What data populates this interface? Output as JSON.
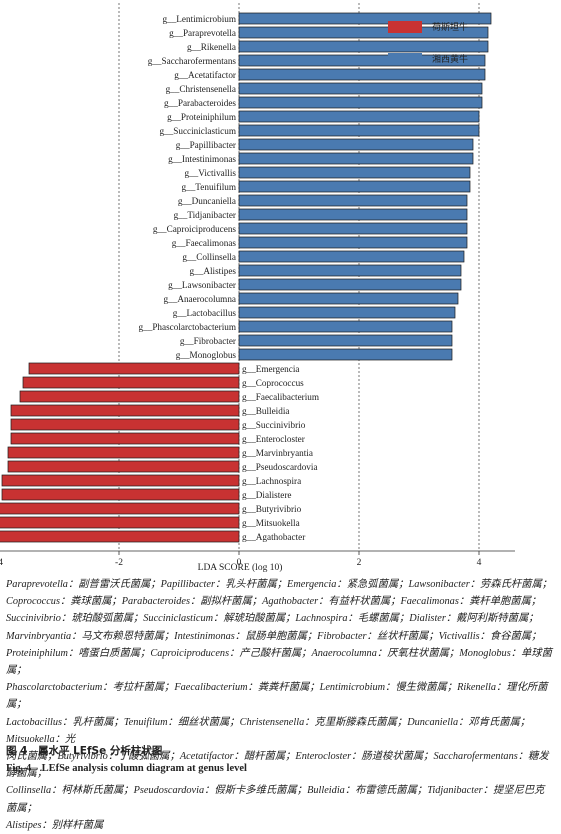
{
  "chart_data": {
    "type": "bar",
    "orientation": "horizontal",
    "xlabel": "LDA SCORE (log 10)",
    "xlim": [
      -5,
      5
    ],
    "xticks": [
      -4,
      -2,
      0,
      2,
      4
    ],
    "grid": true,
    "legend_position": "top-right",
    "series": [
      {
        "name": "荷斯坦牛",
        "color": "#c83232"
      },
      {
        "name": "湘西黄牛",
        "color": "#4a7ab0"
      }
    ],
    "bars": [
      {
        "label": "g__Lentimicrobium",
        "value": 4.2,
        "group": 1
      },
      {
        "label": "g__Paraprevotella",
        "value": 4.15,
        "group": 1
      },
      {
        "label": "g__Rikenella",
        "value": 4.15,
        "group": 1
      },
      {
        "label": "g__Saccharofermentans",
        "value": 4.1,
        "group": 1
      },
      {
        "label": "g__Acetatifactor",
        "value": 4.1,
        "group": 1
      },
      {
        "label": "g__Christensenella",
        "value": 4.05,
        "group": 1
      },
      {
        "label": "g__Parabacteroides",
        "value": 4.05,
        "group": 1
      },
      {
        "label": "g__Proteiniphilum",
        "value": 4.0,
        "group": 1
      },
      {
        "label": "g__Succiniclasticum",
        "value": 4.0,
        "group": 1
      },
      {
        "label": "g__Papillibacter",
        "value": 3.9,
        "group": 1
      },
      {
        "label": "g__Intestinimonas",
        "value": 3.9,
        "group": 1
      },
      {
        "label": "g__Victivallis",
        "value": 3.85,
        "group": 1
      },
      {
        "label": "g__Tenuifilum",
        "value": 3.85,
        "group": 1
      },
      {
        "label": "g__Duncaniella",
        "value": 3.8,
        "group": 1
      },
      {
        "label": "g__Tidjanibacter",
        "value": 3.8,
        "group": 1
      },
      {
        "label": "g__Caproiciproducens",
        "value": 3.8,
        "group": 1
      },
      {
        "label": "g__Faecalimonas",
        "value": 3.8,
        "group": 1
      },
      {
        "label": "g__Collinsella",
        "value": 3.75,
        "group": 1
      },
      {
        "label": "g__Alistipes",
        "value": 3.7,
        "group": 1
      },
      {
        "label": "g__Lawsonibacter",
        "value": 3.7,
        "group": 1
      },
      {
        "label": "g__Anaerocolumna",
        "value": 3.65,
        "group": 1
      },
      {
        "label": "g__Lactobacillus",
        "value": 3.6,
        "group": 1
      },
      {
        "label": "g__Phascolarctobacterium",
        "value": 3.55,
        "group": 1
      },
      {
        "label": "g__Fibrobacter",
        "value": 3.55,
        "group": 1
      },
      {
        "label": "g__Monoglobus",
        "value": 3.55,
        "group": 1
      },
      {
        "label": "g__Emergencia",
        "value": -3.5,
        "group": 0
      },
      {
        "label": "g__Coprococcus",
        "value": -3.6,
        "group": 0
      },
      {
        "label": "g__Faecalibacterium",
        "value": -3.65,
        "group": 0
      },
      {
        "label": "g__Bulleidia",
        "value": -3.8,
        "group": 0
      },
      {
        "label": "g__Succinivibrio",
        "value": -3.8,
        "group": 0
      },
      {
        "label": "g__Enterocloster",
        "value": -3.8,
        "group": 0
      },
      {
        "label": "g__Marvinbryantia",
        "value": -3.85,
        "group": 0
      },
      {
        "label": "g__Pseudoscardovia",
        "value": -3.85,
        "group": 0
      },
      {
        "label": "g__Lachnospira",
        "value": -3.95,
        "group": 0
      },
      {
        "label": "g__Dialistere",
        "value": -3.95,
        "group": 0
      },
      {
        "label": "g__Butyrivibrio",
        "value": -4.1,
        "group": 0
      },
      {
        "label": "g__Mitsuokella",
        "value": -4.1,
        "group": 0
      },
      {
        "label": "g__Agathobacter",
        "value": -4.4,
        "group": 0
      }
    ]
  },
  "caption": {
    "lines": [
      "Paraprevotella：副普雷沃氏菌属；Papillibacter：乳头杆菌属；Emergencia：紧急弧菌属；Lawsonibacter：劳森氏杆菌属；",
      "Coprococcus：粪球菌属；Parabacteroides：副拟杆菌属；Agathobacter：有益杆状菌属；Faecalimonas：粪杆单胞菌属；",
      "Succinivibrio：琥珀酸弧菌属；Succiniclasticum：解琥珀酸菌属；Lachnospira：毛螺菌属；Dialister：戴阿利斯特菌属；",
      "Marvinbryantia：马文布赖恩特菌属；Intestinimonas：鼠肠单胞菌属；Fibrobacter：丝状杆菌属；Victivallis：食谷菌属；",
      "Proteiniphilum：嗜蛋白质菌属；Caproiciproducens：产己酸杆菌属；Anaerocolumna：厌氧柱状菌属；Monoglobus：单球菌属；",
      "Phascolarctobacterium：考拉杆菌属；Faecalibacterium：粪粪杆菌属；Lentimicrobium：慢生微菌属；Rikenella：理化所菌属；",
      "Lactobacillus：乳杆菌属；Tenuifilum：细丝状菌属；Christensenella：克里斯滕森氏菌属；Duncaniella：邓肯氏菌属；Mitsuokella：光",
      "岗氏菌属；Butyrivibrio：丁酸弧菌属；Acetatifactor：醋杆菌属；Enterocloster：肠道梭状菌属；Saccharofermentans：糖发酵菌属；",
      "Collinsella：柯林斯氏菌属；Pseudoscardovia：假斯卡多维氏菌属；Bulleidia：布雷德氏菌属；Tidjanibacter：提坚尼巴克菌属；",
      "Alistipes：别样杆菌属"
    ],
    "figure_cn": "图 4　属水平 LEfSe 分析柱状图",
    "figure_en": "Fig. 4　LEfSe analysis column diagram at genus level"
  }
}
